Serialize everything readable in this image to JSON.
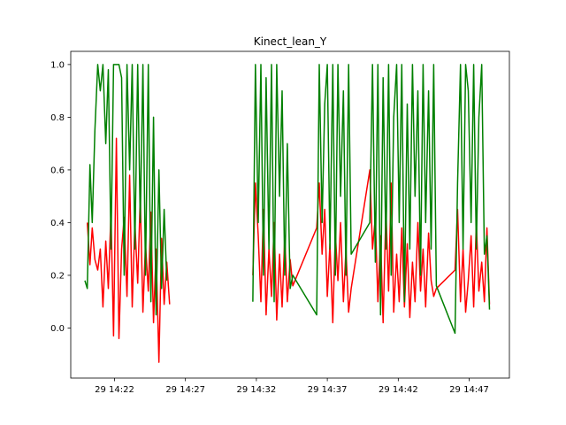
{
  "chart_data": {
    "type": "line",
    "title": "Kinect_lean_Y",
    "xlabel": "",
    "ylabel": "",
    "x_ticks": [
      "29 14:22",
      "29 14:27",
      "29 14:32",
      "29 14:37",
      "29 14:42",
      "29 14:47"
    ],
    "x_tick_values": [
      "14:22",
      "14:27",
      "14:32",
      "14:37",
      "14:42",
      "14:47"
    ],
    "y_ticks": [
      "0.0",
      "0.2",
      "0.4",
      "0.6",
      "0.8",
      "1.0"
    ],
    "y_tick_values": [
      0.0,
      0.2,
      0.4,
      0.6,
      0.8,
      1.0
    ],
    "xlim": [
      "14:18:55",
      "14:49:50"
    ],
    "ylim": [
      -0.19,
      1.05
    ],
    "grid": false,
    "series": [
      {
        "color": "#ff0000",
        "x": [
          "14:20:05",
          "14:20:16",
          "14:20:26",
          "14:20:37",
          "14:20:49",
          "14:21:00",
          "14:21:11",
          "14:21:23",
          "14:21:34",
          "14:21:45",
          "14:21:56",
          "14:22:08",
          "14:22:19",
          "14:22:30",
          "14:22:41",
          "14:22:53",
          "14:23:04",
          "14:23:15",
          "14:23:26",
          "14:23:38",
          "14:23:49",
          "14:24:00",
          "14:24:11",
          "14:24:23",
          "14:24:34",
          "14:24:45",
          "14:24:56",
          "14:25:08",
          "14:25:19",
          "14:25:30",
          "14:25:41",
          "14:25:53",
          "14:31:45",
          "14:31:56",
          "14:32:08",
          "14:32:19",
          "14:32:30",
          "14:32:41",
          "14:32:53",
          "14:33:04",
          "14:33:15",
          "14:33:26",
          "14:33:38",
          "14:33:49",
          "14:34:00",
          "14:34:11",
          "14:34:23",
          "14:34:34",
          "14:36:15",
          "14:36:26",
          "14:36:38",
          "14:36:49",
          "14:37:00",
          "14:37:11",
          "14:37:23",
          "14:37:34",
          "14:37:45",
          "14:37:56",
          "14:38:08",
          "14:38:19",
          "14:38:30",
          "14:38:41",
          "14:40:00",
          "14:40:11",
          "14:40:23",
          "14:40:34",
          "14:40:45",
          "14:40:56",
          "14:41:08",
          "14:41:19",
          "14:41:30",
          "14:41:41",
          "14:41:53",
          "14:42:04",
          "14:42:15",
          "14:42:26",
          "14:42:38",
          "14:42:49",
          "14:43:00",
          "14:43:11",
          "14:43:23",
          "14:43:34",
          "14:43:45",
          "14:43:56",
          "14:44:08",
          "14:44:19",
          "14:44:30",
          "14:44:41",
          "14:46:00",
          "14:46:11",
          "14:46:23",
          "14:46:34",
          "14:46:45",
          "14:46:56",
          "14:47:08",
          "14:47:19",
          "14:47:30",
          "14:47:41",
          "14:47:53",
          "14:48:04",
          "14:48:15",
          "14:48:26"
        ],
        "y": [
          0.4,
          0.24,
          0.38,
          0.26,
          0.22,
          0.3,
          0.08,
          0.33,
          0.15,
          0.44,
          -0.03,
          0.72,
          -0.04,
          0.3,
          0.42,
          0.12,
          0.58,
          0.08,
          0.4,
          0.17,
          0.5,
          0.06,
          0.32,
          0.14,
          0.44,
          0.02,
          0.3,
          -0.13,
          0.34,
          0.09,
          0.25,
          0.09,
          0.2,
          0.55,
          0.35,
          0.1,
          0.45,
          0.05,
          0.3,
          0.12,
          0.4,
          0.03,
          0.28,
          0.08,
          0.35,
          0.1,
          0.26,
          0.16,
          0.38,
          0.55,
          0.28,
          0.45,
          0.12,
          0.32,
          0.02,
          0.36,
          0.18,
          0.4,
          0.1,
          0.3,
          0.06,
          0.15,
          0.6,
          0.3,
          0.42,
          0.1,
          0.35,
          0.02,
          0.45,
          0.14,
          0.55,
          0.06,
          0.28,
          0.1,
          0.38,
          0.08,
          0.32,
          0.04,
          0.25,
          0.1,
          0.4,
          0.14,
          0.3,
          0.08,
          0.36,
          0.18,
          0.12,
          0.15,
          0.22,
          0.45,
          0.1,
          0.3,
          0.06,
          0.18,
          0.35,
          0.08,
          0.4,
          0.14,
          0.25,
          0.1,
          0.38,
          0.09
        ]
      },
      {
        "color": "#008000",
        "x": [
          "14:19:55",
          "14:20:05",
          "14:20:16",
          "14:20:26",
          "14:20:37",
          "14:20:49",
          "14:21:00",
          "14:21:11",
          "14:21:23",
          "14:21:34",
          "14:21:45",
          "14:21:56",
          "14:22:08",
          "14:22:19",
          "14:22:30",
          "14:22:41",
          "14:22:53",
          "14:23:04",
          "14:23:15",
          "14:23:26",
          "14:23:38",
          "14:23:49",
          "14:24:00",
          "14:24:11",
          "14:24:23",
          "14:24:34",
          "14:24:45",
          "14:24:56",
          "14:25:08",
          "14:25:19",
          "14:25:30",
          "14:25:41",
          "14:31:45",
          "14:31:56",
          "14:32:08",
          "14:32:19",
          "14:32:30",
          "14:32:41",
          "14:32:53",
          "14:33:04",
          "14:33:15",
          "14:33:26",
          "14:33:38",
          "14:33:49",
          "14:34:00",
          "14:34:11",
          "14:34:23",
          "14:34:34",
          "14:36:15",
          "14:36:26",
          "14:36:38",
          "14:36:49",
          "14:37:00",
          "14:37:11",
          "14:37:23",
          "14:37:34",
          "14:37:45",
          "14:37:56",
          "14:38:08",
          "14:38:19",
          "14:38:30",
          "14:38:41",
          "14:40:00",
          "14:40:11",
          "14:40:23",
          "14:40:34",
          "14:40:45",
          "14:40:56",
          "14:41:08",
          "14:41:19",
          "14:41:30",
          "14:41:41",
          "14:41:53",
          "14:42:04",
          "14:42:15",
          "14:42:26",
          "14:42:38",
          "14:42:49",
          "14:43:00",
          "14:43:11",
          "14:43:23",
          "14:43:34",
          "14:43:45",
          "14:43:56",
          "14:44:08",
          "14:44:19",
          "14:44:30",
          "14:44:41",
          "14:46:00",
          "14:46:11",
          "14:46:23",
          "14:46:34",
          "14:46:45",
          "14:46:56",
          "14:47:08",
          "14:47:19",
          "14:47:30",
          "14:47:41",
          "14:47:53",
          "14:48:04",
          "14:48:15",
          "14:48:26"
        ],
        "y": [
          0.18,
          0.15,
          0.62,
          0.4,
          0.75,
          1.0,
          0.9,
          1.0,
          0.7,
          0.98,
          0.3,
          1.0,
          1.0,
          1.0,
          0.95,
          0.2,
          1.0,
          0.6,
          1.0,
          0.3,
          1.0,
          0.4,
          1.0,
          0.2,
          1.0,
          0.1,
          0.8,
          0.05,
          0.6,
          0.15,
          0.45,
          0.18,
          0.1,
          1.0,
          0.4,
          1.0,
          0.2,
          0.95,
          0.3,
          1.0,
          0.1,
          1.0,
          0.5,
          0.9,
          0.2,
          0.7,
          0.15,
          0.2,
          0.05,
          1.0,
          0.4,
          0.85,
          1.0,
          0.3,
          1.0,
          0.2,
          1.0,
          0.5,
          0.9,
          0.2,
          1.0,
          0.28,
          0.4,
          1.0,
          0.25,
          1.0,
          0.05,
          0.95,
          0.3,
          1.0,
          0.2,
          0.8,
          1.0,
          0.4,
          1.0,
          0.1,
          0.85,
          0.3,
          1.0,
          0.5,
          0.9,
          0.2,
          1.0,
          0.4,
          0.9,
          0.3,
          1.0,
          0.16,
          -0.02,
          0.55,
          1.0,
          0.3,
          1.0,
          0.9,
          0.4,
          1.0,
          0.3,
          0.8,
          1.0,
          0.28,
          0.35,
          0.07
        ]
      }
    ]
  }
}
